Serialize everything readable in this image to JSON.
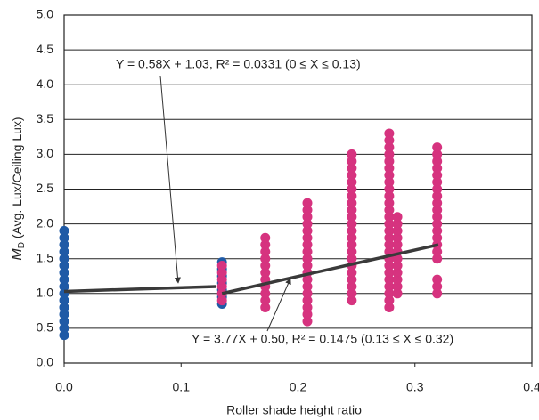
{
  "chart_data": {
    "type": "scatter",
    "xlabel": "Roller shade height  ratio",
    "ylabel": {
      "symbol": "M",
      "subscript": "D",
      "rest": " (Avg. Lux/Ceiling Lux)"
    },
    "xlim": [
      0,
      0.4
    ],
    "ylim": [
      0,
      5.0
    ],
    "xticks": [
      {
        "value": 0,
        "label": "0.0"
      },
      0.1,
      0.2,
      0.3,
      0.4
    ],
    "yticks": [
      {
        "value": 0,
        "label": "0.0"
      },
      0.5,
      {
        "value": 1,
        "label": "1.0"
      },
      1.5,
      {
        "value": 2,
        "label": "2.0"
      },
      2.5,
      {
        "value": 3,
        "label": "3.0"
      },
      3.5,
      {
        "value": 4,
        "label": "4.0"
      },
      4.5,
      {
        "value": 5,
        "label": "5.0"
      }
    ],
    "grid": true,
    "series": [
      {
        "color": "#1f5aa6",
        "x": [
          0,
          0,
          0,
          0,
          0,
          0,
          0,
          0,
          0,
          0,
          0,
          0,
          0,
          0,
          0,
          0,
          0.135,
          0.135,
          0.135,
          0.135,
          0.135,
          0.135,
          0.135
        ],
        "values": [
          0.4,
          0.5,
          0.6,
          0.7,
          0.8,
          0.9,
          1.0,
          1.1,
          1.2,
          1.3,
          1.4,
          1.5,
          1.6,
          1.7,
          1.8,
          1.9,
          0.85,
          0.95,
          1.05,
          1.15,
          1.25,
          1.35,
          1.45
        ]
      },
      {
        "color": "#d6337f",
        "x": [
          0.135,
          0.135,
          0.135,
          0.135,
          0.135,
          0.135,
          0.172,
          0.172,
          0.172,
          0.172,
          0.172,
          0.172,
          0.172,
          0.172,
          0.172,
          0.172,
          0.172,
          0.208,
          0.208,
          0.208,
          0.208,
          0.208,
          0.208,
          0.208,
          0.208,
          0.208,
          0.208,
          0.208,
          0.208,
          0.208,
          0.208,
          0.208,
          0.208,
          0.208,
          0.208,
          0.246,
          0.246,
          0.246,
          0.246,
          0.246,
          0.246,
          0.246,
          0.246,
          0.246,
          0.246,
          0.246,
          0.246,
          0.246,
          0.246,
          0.246,
          0.246,
          0.246,
          0.246,
          0.246,
          0.246,
          0.246,
          0.246,
          0.278,
          0.278,
          0.278,
          0.278,
          0.278,
          0.278,
          0.278,
          0.278,
          0.278,
          0.278,
          0.278,
          0.278,
          0.278,
          0.278,
          0.278,
          0.278,
          0.278,
          0.278,
          0.278,
          0.278,
          0.278,
          0.278,
          0.278,
          0.278,
          0.278,
          0.278,
          0.285,
          0.285,
          0.285,
          0.285,
          0.285,
          0.285,
          0.285,
          0.285,
          0.285,
          0.285,
          0.285,
          0.285,
          0.319,
          0.319,
          0.319,
          0.319,
          0.319,
          0.319,
          0.319,
          0.319,
          0.319,
          0.319,
          0.319,
          0.319,
          0.319,
          0.319,
          0.319,
          0.319,
          0.319,
          0.319,
          0.319,
          0.319
        ],
        "values": [
          0.9,
          1.0,
          1.1,
          1.2,
          1.3,
          1.4,
          0.8,
          0.9,
          1.0,
          1.1,
          1.2,
          1.3,
          1.4,
          1.5,
          1.6,
          1.7,
          1.8,
          0.6,
          0.7,
          0.8,
          0.9,
          1.0,
          1.1,
          1.2,
          1.3,
          1.4,
          1.5,
          1.6,
          1.7,
          1.8,
          1.9,
          2.0,
          2.1,
          2.2,
          2.3,
          0.9,
          1.0,
          1.1,
          1.2,
          1.3,
          1.4,
          1.5,
          1.6,
          1.7,
          1.8,
          1.9,
          2.0,
          2.1,
          2.2,
          2.3,
          2.4,
          2.5,
          2.6,
          2.7,
          2.8,
          2.9,
          3.0,
          0.8,
          0.9,
          1.0,
          1.1,
          1.2,
          1.3,
          1.4,
          1.5,
          1.6,
          1.7,
          1.8,
          1.9,
          2.0,
          2.1,
          2.2,
          2.3,
          2.4,
          2.5,
          2.6,
          2.7,
          2.8,
          2.9,
          3.0,
          3.1,
          3.2,
          3.3,
          1.0,
          1.1,
          1.2,
          1.3,
          1.4,
          1.5,
          1.6,
          1.7,
          1.8,
          1.9,
          2.0,
          2.1,
          1.0,
          1.1,
          1.2,
          1.5,
          1.6,
          1.7,
          1.8,
          1.9,
          2.0,
          2.1,
          2.2,
          2.3,
          2.4,
          2.5,
          2.6,
          2.7,
          2.8,
          2.9,
          3.0,
          3.1
        ]
      }
    ],
    "fit_lines": [
      {
        "color": "#3a3a3a",
        "x": [
          0,
          0.13
        ],
        "values": [
          1.03,
          1.1
        ]
      },
      {
        "color": "#3a3a3a",
        "x": [
          0.135,
          0.32
        ],
        "values": [
          1.0,
          1.7
        ]
      }
    ],
    "annotations": [
      "Y = 0.58X + 1.03, R² = 0.0331 (0 ≤  X ≤  0.13)",
      "Y = 3.77X + 0.50, R² = 0.1475 (0.13 ≤  X ≤  0.32)"
    ]
  }
}
